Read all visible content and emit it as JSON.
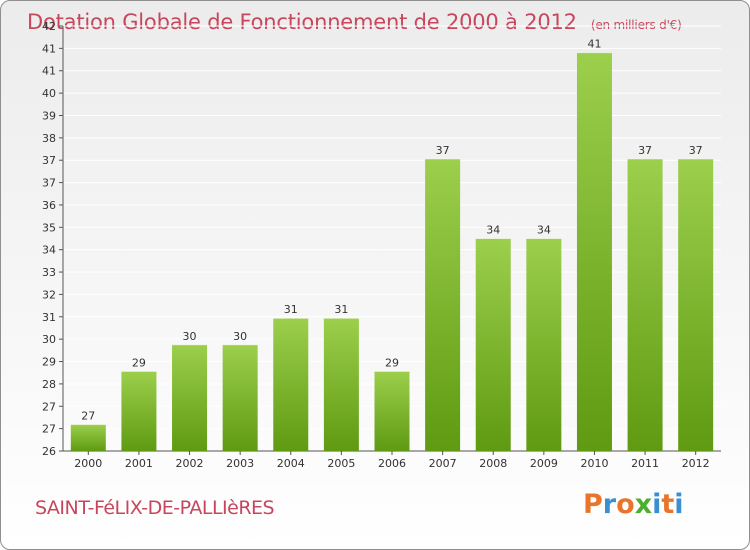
{
  "header": {
    "title": "Dotation Globale de Fonctionnement de 2000 à 2012",
    "unit": "(en milliers d'€)"
  },
  "footer": {
    "commune": "SAINT-FéLIX-DE-PALLIèRES",
    "logo": "Proxiti",
    "logo_colors": [
      "#e8752b",
      "#3a8fd0",
      "#e8752b",
      "#4caf2e",
      "#3a8fd0",
      "#e8752b",
      "#3a8fd0"
    ]
  },
  "colors": {
    "bar_top": "#9ccf4c",
    "bar_bottom": "#5f9a12",
    "title": "#c8465c",
    "grid": "#ffffff",
    "axis": "#555555"
  },
  "chart_data": {
    "type": "bar",
    "title": "Dotation Globale de Fonctionnement de 2000 à 2012",
    "subtitle": "(en milliers d'€)",
    "categories": [
      "2000",
      "2001",
      "2002",
      "2003",
      "2004",
      "2005",
      "2006",
      "2007",
      "2008",
      "2009",
      "2010",
      "2011",
      "2012"
    ],
    "values": [
      27,
      29,
      30,
      30,
      31,
      31,
      29,
      37,
      34,
      34,
      41,
      37,
      37
    ],
    "data_labels": [
      "27",
      "29",
      "30",
      "30",
      "31",
      "31",
      "29",
      "37",
      "34",
      "34",
      "41",
      "37",
      "37"
    ],
    "ylim": [
      26,
      42
    ],
    "yticks": [
      "26",
      "27",
      "27",
      "28",
      "29",
      "30",
      "31",
      "32",
      "33",
      "34",
      "35",
      "36",
      "37",
      "37",
      "38",
      "39",
      "40",
      "41",
      "41",
      "42"
    ],
    "grid": true,
    "legend": "none"
  }
}
